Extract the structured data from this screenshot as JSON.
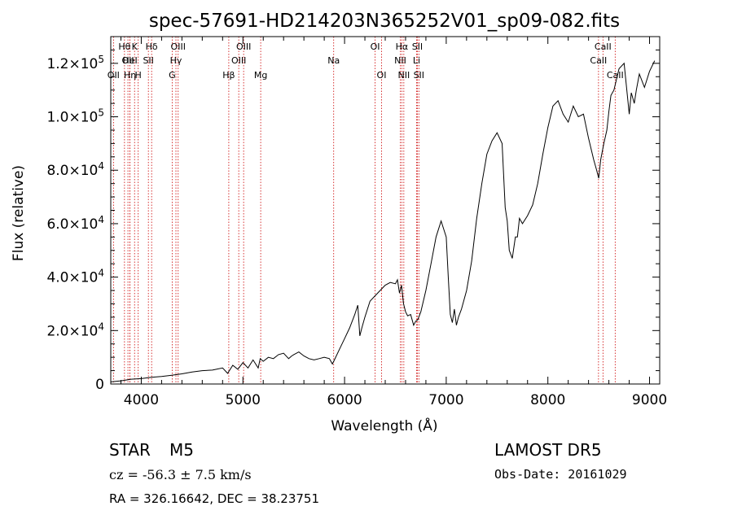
{
  "chart_data": {
    "type": "line",
    "title": "spec-57691-HD214203N365252V01_sp09-082.fits",
    "xlabel": "Wavelength (Å)",
    "ylabel": "Flux (relative)",
    "xlim": [
      3700,
      9100
    ],
    "ylim": [
      0,
      130000
    ],
    "x_ticks": [
      4000,
      5000,
      6000,
      7000,
      8000,
      9000
    ],
    "y_ticks": [
      {
        "value": 0,
        "mantissa": "0",
        "exp": ""
      },
      {
        "value": 20000,
        "mantissa": "2.0×10",
        "exp": "4"
      },
      {
        "value": 40000,
        "mantissa": "4.0×10",
        "exp": "4"
      },
      {
        "value": 60000,
        "mantissa": "6.0×10",
        "exp": "4"
      },
      {
        "value": 80000,
        "mantissa": "8.0×10",
        "exp": "4"
      },
      {
        "value": 100000,
        "mantissa": "1.0×10",
        "exp": "5"
      },
      {
        "value": 120000,
        "mantissa": "1.2×10",
        "exp": "5"
      }
    ],
    "grid": false,
    "line_color": "#000000",
    "marker_color": "#cc0000",
    "series": [
      {
        "x": [
          3700,
          3800,
          3900,
          4000,
          4100,
          4200,
          4300,
          4400,
          4500,
          4600,
          4700,
          4800,
          4850,
          4900,
          4950,
          5000,
          5050,
          5100,
          5150,
          5170,
          5200,
          5250,
          5300,
          5350,
          5400,
          5450,
          5480,
          5500,
          5550,
          5600,
          5650,
          5700,
          5750,
          5800,
          5850,
          5880,
          5900,
          5950,
          6000,
          6050,
          6100,
          6130,
          6150,
          6170,
          6200,
          6250,
          6300,
          6350,
          6400,
          6450,
          6500,
          6520,
          6540,
          6560,
          6580,
          6600,
          6620,
          6650,
          6680,
          6700,
          6720,
          6750,
          6800,
          6850,
          6900,
          6950,
          7000,
          7020,
          7040,
          7060,
          7080,
          7100,
          7120,
          7150,
          7200,
          7250,
          7300,
          7350,
          7400,
          7450,
          7500,
          7550,
          7580,
          7600,
          7620,
          7650,
          7680,
          7700,
          7720,
          7750,
          7800,
          7850,
          7900,
          7950,
          8000,
          8050,
          8100,
          8150,
          8200,
          8250,
          8300,
          8350,
          8400,
          8450,
          8480,
          8500,
          8520,
          8550,
          8580,
          8600,
          8620,
          8650,
          8700,
          8750,
          8800,
          8820,
          8850,
          8870,
          8900,
          8950,
          9000,
          9050
        ],
        "y": [
          800,
          1200,
          1800,
          2000,
          2500,
          2800,
          3300,
          3800,
          4500,
          5000,
          5200,
          6000,
          4000,
          7000,
          5500,
          8000,
          6000,
          9000,
          6000,
          9500,
          8500,
          10000,
          9500,
          11000,
          11500,
          9500,
          10500,
          11000,
          12000,
          10500,
          9500,
          9000,
          9500,
          10000,
          9500,
          7500,
          9000,
          13000,
          17000,
          21000,
          26000,
          29500,
          18000,
          21000,
          25000,
          31000,
          33000,
          35000,
          37000,
          38000,
          37500,
          39000,
          34000,
          37000,
          30000,
          27000,
          25500,
          26000,
          22000,
          23500,
          24000,
          27000,
          35000,
          45000,
          55000,
          61000,
          55000,
          40000,
          26000,
          23000,
          28000,
          22000,
          25000,
          28000,
          35000,
          46000,
          62000,
          75000,
          86000,
          91000,
          94000,
          90000,
          66000,
          61000,
          50000,
          47000,
          55000,
          55000,
          62000,
          60000,
          63000,
          67000,
          75000,
          86000,
          96000,
          104000,
          106000,
          101000,
          98000,
          104000,
          100000,
          101000,
          92000,
          84000,
          80000,
          77000,
          84000,
          90000,
          95000,
          102000,
          108000,
          110000,
          118000,
          120000,
          101000,
          109000,
          105000,
          110000,
          116000,
          111000,
          117000,
          121000
        ]
      }
    ],
    "spectral_lines": [
      {
        "wl": 3835,
        "label": "Hθ",
        "row": 0
      },
      {
        "wl": 3869,
        "label": "OII",
        "row": 1
      },
      {
        "wl": 3727,
        "label": "OII",
        "row": 2
      },
      {
        "wl": 3889,
        "label": "Hη",
        "row": 2
      },
      {
        "wl": 3934,
        "label": "K",
        "row": 0
      },
      {
        "wl": 3970,
        "label": "H",
        "row": 2
      },
      {
        "wl": 3889,
        "label": "HeI",
        "row": 1
      },
      {
        "wl": 4070,
        "label": "SII",
        "row": 1
      },
      {
        "wl": 4102,
        "label": "Hδ",
        "row": 0
      },
      {
        "wl": 4304,
        "label": "G",
        "row": 2
      },
      {
        "wl": 4341,
        "label": "Hγ",
        "row": 1
      },
      {
        "wl": 4363,
        "label": "OIII",
        "row": 0
      },
      {
        "wl": 4861,
        "label": "Hβ",
        "row": 2
      },
      {
        "wl": 4959,
        "label": "OIII",
        "row": 1
      },
      {
        "wl": 5007,
        "label": "OIII",
        "row": 0
      },
      {
        "wl": 5175,
        "label": "Mg",
        "row": 2
      },
      {
        "wl": 5893,
        "label": "Na",
        "row": 1
      },
      {
        "wl": 6300,
        "label": "OI",
        "row": 0
      },
      {
        "wl": 6364,
        "label": "OI",
        "row": 2
      },
      {
        "wl": 6548,
        "label": "NII",
        "row": 1
      },
      {
        "wl": 6563,
        "label": "Hα",
        "row": 0
      },
      {
        "wl": 6583,
        "label": "NII",
        "row": 2
      },
      {
        "wl": 6708,
        "label": "Li",
        "row": 1
      },
      {
        "wl": 6716,
        "label": "SII",
        "row": 0
      },
      {
        "wl": 6731,
        "label": "SII",
        "row": 2
      },
      {
        "wl": 8498,
        "label": "CaII",
        "row": 1
      },
      {
        "wl": 8542,
        "label": "CaII",
        "row": 0
      },
      {
        "wl": 8662,
        "label": "CaII",
        "row": 2
      }
    ]
  },
  "info": {
    "object_class": "STAR",
    "subclass": "M5",
    "survey": "LAMOST DR5",
    "cz": "cz = -56.3 ± 7.5 km/s",
    "obs_date": "Obs-Date: 20161029",
    "coords": "RA = 326.16642, DEC =  38.23751"
  }
}
